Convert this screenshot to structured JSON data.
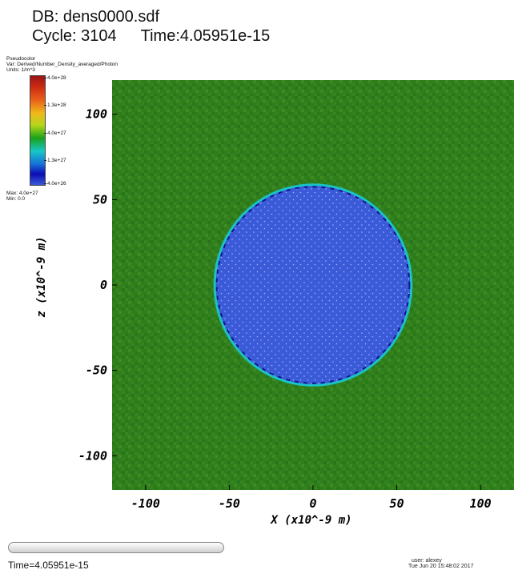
{
  "header": {
    "db": "DB: dens0000.sdf",
    "cycle": "Cycle: 3104",
    "time": "Time:4.05951e-15"
  },
  "legend": {
    "plot_type": "Pseudocolor",
    "var": "Var: Derived/Number_Density_averaged/Photon",
    "units": "Units: 1/m^3",
    "ticks": [
      "4.0e+28",
      "1.3e+28",
      "4.0e+27",
      "1.3e+27",
      "4.0e+26"
    ],
    "max": "Max:  4.0e+27",
    "min": "Min:  0.0",
    "colors": [
      "#9a1515",
      "#cc2a12",
      "#e8611a",
      "#f0b81a",
      "#b6d61a",
      "#1aa21a",
      "#16c8c8",
      "#1670d8",
      "#0d0db4",
      "#3a5ad8"
    ]
  },
  "chart_data": {
    "type": "heatmap",
    "title": "",
    "xlabel": "X  (x10^-9 m)",
    "ylabel": "z  (x10^-9 m)",
    "xlim": [
      -120,
      120
    ],
    "ylim": [
      -120,
      120
    ],
    "x_ticks": [
      -100,
      -50,
      0,
      50,
      100
    ],
    "y_ticks": [
      100,
      50,
      0,
      -50,
      -100
    ],
    "x_tick_labels": [
      "-100",
      "-50",
      "0",
      "50",
      "100"
    ],
    "y_tick_labels": [
      "100",
      "50",
      "0",
      "-50",
      "-100"
    ],
    "regions": [
      {
        "name": "background",
        "shape": "fill",
        "approx_value": "1.5e+27",
        "color": "#2f7e1c"
      },
      {
        "name": "disk",
        "shape": "circle",
        "center": [
          0,
          0
        ],
        "radius": 58,
        "approx_value": "4.0e+26",
        "color": "#3a5ad8"
      }
    ],
    "grid": false,
    "legend_position": "top-left"
  },
  "footer": {
    "time_label": "Time=4.05951e-15",
    "user": "user: alexey",
    "timestamp": "Tue Jun 20 15:48:02 2017"
  }
}
